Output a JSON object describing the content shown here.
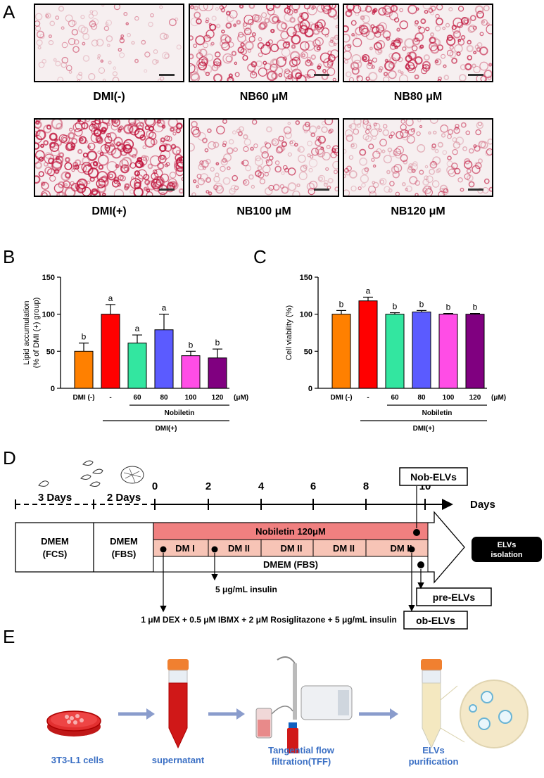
{
  "panel_letters": {
    "a": "A",
    "b": "B",
    "c": "C",
    "d": "D",
    "e": "E"
  },
  "micrographs": [
    {
      "label": "DMI(-)",
      "density": 0.25,
      "intensity": 0.35
    },
    {
      "label": "NB60 μM",
      "density": 0.75,
      "intensity": 0.8
    },
    {
      "label": "NB80 μM",
      "density": 0.65,
      "intensity": 0.75
    },
    {
      "label": "DMI(+)",
      "density": 0.95,
      "intensity": 0.95
    },
    {
      "label": "NB100 μM",
      "density": 0.5,
      "intensity": 0.55
    },
    {
      "label": "NB120 μM",
      "density": 0.55,
      "intensity": 0.5
    }
  ],
  "chart_data": [
    {
      "type": "bar",
      "ylabel": "Lipid accumulation (% of DMI (+) group)",
      "ylabel_lines": [
        "Lipid accumulation",
        "(% of DMI (+) group)"
      ],
      "ylim": [
        0,
        150
      ],
      "yticks": [
        "0",
        "50",
        "100",
        "150"
      ],
      "categories": [
        "DMI (-)",
        "-",
        "60",
        "80",
        "100",
        "120"
      ],
      "unit_label": "(μM)",
      "values": [
        50,
        100,
        61,
        79,
        44,
        41
      ],
      "errors": [
        11,
        13,
        11,
        21,
        6,
        12
      ],
      "letters": [
        "b",
        "a",
        "a",
        "a",
        "b",
        "b"
      ],
      "colors": [
        "#ff8000",
        "#ff0000",
        "#33e6a0",
        "#5b5bff",
        "#ff4de6",
        "#800080"
      ],
      "group_label_1": "Nobiletin",
      "group_label_2": "DMI(+)"
    },
    {
      "type": "bar",
      "ylabel": "Cell viability (%)",
      "ylabel_lines": [
        "Cell viability (%)"
      ],
      "ylim": [
        0,
        150
      ],
      "yticks": [
        "0",
        "50",
        "100",
        "150"
      ],
      "categories": [
        "DMI (-)",
        "-",
        "60",
        "80",
        "100",
        "120"
      ],
      "unit_label": "(μM)",
      "values": [
        100,
        118,
        100,
        103,
        100,
        100
      ],
      "errors": [
        5,
        5,
        2,
        2,
        1,
        1
      ],
      "letters": [
        "b",
        "a",
        "b",
        "b",
        "b",
        "b"
      ],
      "colors": [
        "#ff8000",
        "#ff0000",
        "#33e6a0",
        "#5b5bff",
        "#ff4de6",
        "#800080"
      ],
      "group_label_1": "Nobiletin",
      "group_label_2": "DMI(+)"
    }
  ],
  "timeline": {
    "pre_days_1": "3 Days",
    "pre_days_2": "2 Days",
    "ticks": [
      "0",
      "2",
      "4",
      "6",
      "8",
      "10"
    ],
    "days_label": "Days",
    "media_1_line1": "DMEM",
    "media_1_line2": "(FCS)",
    "media_2_line1": "DMEM",
    "media_2_line2": "(FBS)",
    "nobiletin_bar": "Nobiletin  120μM",
    "dm_segments": [
      "DM I",
      "DM II",
      "DM II",
      "DM II",
      "DM II"
    ],
    "dmem_bar": "DMEM (FBS)",
    "elvs_isolation_line1": "ELVs",
    "elvs_isolation_line2": "isolation",
    "nob_elvs": "Nob-ELVs",
    "pre_elvs": "pre-ELVs",
    "ob_elvs": "ob-ELVs",
    "insulin_note": "5 μg/mL insulin",
    "cocktail_note": "1 μM DEX + 0.5 μM IBMX + 2 μM Rosiglitazone + 5 μg/mL insulin"
  },
  "workflow": {
    "steps": [
      "3T3-L1 cells",
      "supernatant",
      "Tangential flow filtration(TFF)",
      "ELVs purification"
    ],
    "step_lines": [
      [
        "3T3-L1 cells"
      ],
      [
        "supernatant"
      ],
      [
        "Tangential flow",
        "filtration(TFF)"
      ],
      [
        "ELVs",
        "purification"
      ]
    ],
    "label_color": "#3a6fc4",
    "arrow_color": "#8a9ccc"
  }
}
